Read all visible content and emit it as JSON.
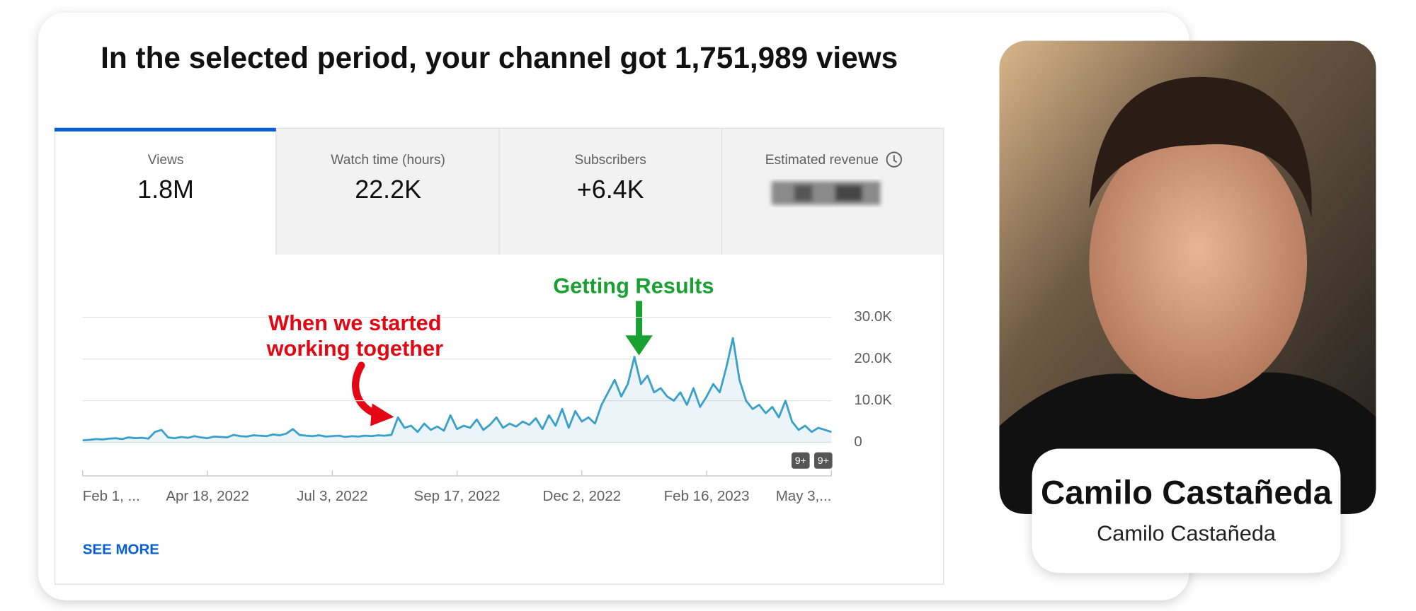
{
  "header": {
    "title": "In the selected period, your channel got 1,751,989 views"
  },
  "tabs": [
    {
      "label": "Views",
      "value": "1.8M"
    },
    {
      "label": "Watch time (hours)",
      "value": "22.2K"
    },
    {
      "label": "Subscribers",
      "value": "+6.4K"
    },
    {
      "label": "Estimated revenue"
    }
  ],
  "chart_data": {
    "type": "line",
    "categories": [
      "Feb 1, ...",
      null,
      null,
      null,
      null,
      null,
      null,
      null,
      null,
      null,
      null,
      null,
      null,
      null,
      null,
      null,
      null,
      null,
      null,
      "Apr 18, 2022",
      null,
      null,
      null,
      null,
      null,
      null,
      null,
      null,
      null,
      null,
      null,
      null,
      null,
      null,
      null,
      null,
      null,
      null,
      "Jul 3, 2022",
      null,
      null,
      null,
      null,
      null,
      null,
      null,
      null,
      null,
      null,
      null,
      null,
      null,
      null,
      null,
      null,
      null,
      null,
      "Sep 17, 2022",
      null,
      null,
      null,
      null,
      null,
      null,
      null,
      null,
      null,
      null,
      null,
      null,
      null,
      null,
      null,
      null,
      null,
      null,
      "Dec 2, 2022",
      null,
      null,
      null,
      null,
      null,
      null,
      null,
      null,
      null,
      null,
      null,
      null,
      null,
      null,
      null,
      null,
      null,
      null,
      "Feb 16, 2023",
      null,
      null,
      null,
      null,
      null,
      null,
      null,
      null,
      null,
      null,
      null,
      null,
      null,
      null,
      null,
      null,
      null,
      null,
      "May 3,..."
    ],
    "values": [
      500,
      600,
      800,
      700,
      900,
      1000,
      800,
      1200,
      1000,
      1100,
      900,
      2500,
      3000,
      1200,
      1000,
      1300,
      1100,
      1500,
      1200,
      1000,
      1400,
      1300,
      1200,
      1800,
      1500,
      1400,
      1700,
      1600,
      1500,
      1900,
      1700,
      2100,
      3200,
      1800,
      1600,
      1500,
      1700,
      1400,
      1500,
      1600,
      1300,
      1500,
      1400,
      1600,
      1500,
      1700,
      1600,
      1800,
      6000,
      3500,
      4000,
      2500,
      4500,
      3000,
      3800,
      2800,
      6500,
      3200,
      4000,
      3500,
      5500,
      3000,
      4200,
      6000,
      3500,
      4500,
      3800,
      5000,
      4200,
      5800,
      3200,
      6500,
      4000,
      8000,
      3500,
      7500,
      5000,
      6000,
      4500,
      9000,
      12000,
      15000,
      11000,
      14000,
      20500,
      14000,
      16000,
      12000,
      13000,
      11000,
      10000,
      12000,
      9000,
      13000,
      8500,
      11000,
      14000,
      12000,
      18000,
      25000,
      15000,
      10000,
      8000,
      9000,
      7000,
      8500,
      6000,
      10000,
      5000,
      3000,
      4000,
      2500,
      3500,
      3000,
      2500
    ],
    "color": "#3a9fc9",
    "area": true,
    "ylim": [
      0,
      30000
    ],
    "yticks": [
      0,
      {
        "value": 10000,
        "label": "10.0K"
      },
      {
        "value": 20000,
        "label": "20.0K"
      },
      {
        "value": 30000,
        "label": "30.0K"
      }
    ],
    "grid": true,
    "annotations": [
      {
        "lines": [
          "Getting Results"
        ],
        "color": "#18a030"
      },
      {
        "lines": [
          "When we started",
          "working together"
        ],
        "color": "#e30613"
      }
    ],
    "badges": [
      "9+",
      "9+"
    ]
  },
  "see_more": "SEE MORE",
  "profile": {
    "name": "Camilo Castañeda",
    "subtitle": "Camilo Castañeda"
  }
}
